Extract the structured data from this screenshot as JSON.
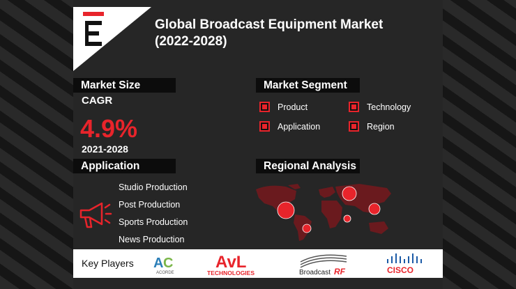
{
  "logo": {
    "letter": "E",
    "accent": "#e8242b"
  },
  "title": {
    "line1": "Global Broadcast Equipment Market",
    "line2": "(2022-2028)"
  },
  "market_size": {
    "heading": "Market Size",
    "cagr_label": "CAGR",
    "cagr_value": "4.9%",
    "period": "2021-2028"
  },
  "market_segment": {
    "heading": "Market Segment",
    "items": [
      "Product",
      "Technology",
      "Application",
      "Region"
    ]
  },
  "application": {
    "heading": "Application",
    "icon": "megaphone-icon",
    "items": [
      "Studio Production",
      "Post Production",
      "Sports Production",
      "News Production"
    ]
  },
  "regional_analysis": {
    "heading": "Regional Analysis"
  },
  "key_players": {
    "label": "Key Players",
    "brands": [
      {
        "name": "ACORDE",
        "mark": "AC"
      },
      {
        "name": "AVL TECHNOLOGIES",
        "mark": "AvL",
        "sub": "TECHNOLOGIES"
      },
      {
        "name": "Broadcast RF",
        "mark": "Broadcast",
        "sub": "RF"
      },
      {
        "name": "CISCO",
        "mark": "CISCO"
      }
    ]
  },
  "colors": {
    "accent": "#e8242b",
    "panel": "#262626",
    "band": "#0c0c0c"
  }
}
